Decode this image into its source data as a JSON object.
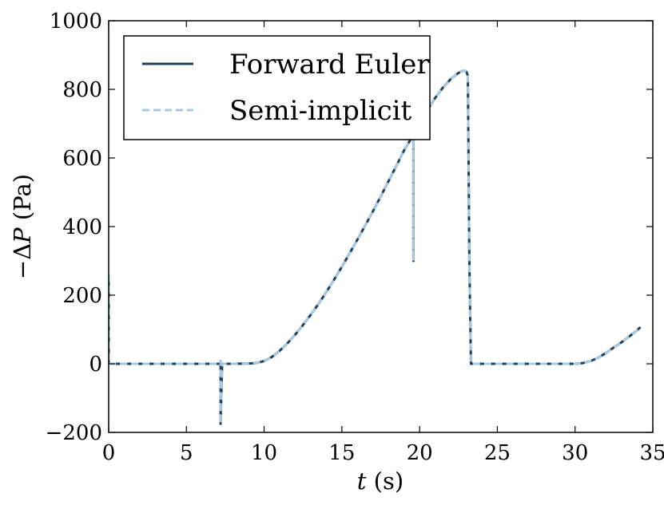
{
  "chart_data": {
    "type": "line",
    "xlabel_var": "t",
    "xlabel_unit": "(s)",
    "ylabel_prefix": "−Δ",
    "ylabel_var": "P",
    "ylabel_unit": "(Pa)",
    "xlim": [
      0,
      35
    ],
    "ylim": [
      -200,
      1000
    ],
    "xticks": [
      0,
      5,
      10,
      15,
      20,
      25,
      30,
      35
    ],
    "xtick_labels": [
      "0",
      "5",
      "10",
      "15",
      "20",
      "25",
      "30",
      "35"
    ],
    "yticks": [
      -200,
      0,
      200,
      400,
      600,
      800,
      1000
    ],
    "ytick_labels": [
      "−200",
      "0",
      "200",
      "400",
      "600",
      "800",
      "1000"
    ],
    "grid": false,
    "legend_position": "top-left",
    "series": [
      {
        "name": "Forward Euler",
        "color": "#1f3f5b",
        "style": "solid",
        "x": [
          0,
          0,
          0.02,
          0.1,
          2,
          4,
          6,
          7.2,
          7.2,
          7.2,
          7.3,
          8,
          9,
          9.5,
          10,
          10.5,
          11,
          11.5,
          12,
          12.5,
          13,
          13.5,
          14,
          14.5,
          15,
          15.5,
          16,
          16.5,
          17,
          17.5,
          18,
          18.5,
          19,
          19.5,
          19.6,
          19.6,
          19.6,
          19.7,
          20,
          20.5,
          21,
          21.5,
          22,
          22.5,
          22.8,
          23.0,
          23.1,
          23.15,
          23.2,
          23.3,
          23.5,
          25,
          27,
          29,
          30,
          30.5,
          31,
          31.5,
          32,
          32.5,
          33,
          33.5,
          34,
          34.2
        ],
        "y": [
          260,
          0,
          0,
          0,
          0,
          0,
          0,
          0,
          8,
          -175,
          0,
          0,
          1,
          2,
          8,
          20,
          38,
          60,
          85,
          113,
          143,
          175,
          209,
          245,
          283,
          322,
          362,
          403,
          445,
          488,
          532,
          577,
          622,
          660,
          665,
          300,
          665,
          680,
          700,
          740,
          775,
          805,
          830,
          848,
          855,
          853,
          840,
          600,
          300,
          0,
          0,
          0,
          0,
          0,
          0,
          2,
          8,
          18,
          32,
          48,
          63,
          80,
          98,
          107
        ]
      },
      {
        "name": "Semi-implicit",
        "color": "#a6c8e0",
        "style": "dashed",
        "x": [
          0,
          0,
          0.02,
          0.1,
          2,
          4,
          6,
          7.2,
          7.2,
          7.2,
          7.3,
          8,
          9,
          9.5,
          10,
          10.5,
          11,
          11.5,
          12,
          12.5,
          13,
          13.5,
          14,
          14.5,
          15,
          15.5,
          16,
          16.5,
          17,
          17.5,
          18,
          18.5,
          19,
          19.5,
          19.6,
          19.6,
          19.6,
          19.7,
          20,
          20.5,
          21,
          21.5,
          22,
          22.5,
          22.8,
          23.0,
          23.1,
          23.15,
          23.2,
          23.3,
          23.5,
          25,
          27,
          29,
          30,
          30.5,
          31,
          31.5,
          32,
          32.5,
          33,
          33.5,
          34,
          34.2
        ],
        "y": [
          260,
          0,
          0,
          0,
          0,
          0,
          0,
          0,
          8,
          -175,
          0,
          0,
          1,
          2,
          8,
          20,
          38,
          60,
          85,
          113,
          143,
          175,
          209,
          245,
          283,
          322,
          362,
          403,
          445,
          488,
          532,
          577,
          622,
          660,
          665,
          300,
          665,
          680,
          700,
          740,
          775,
          805,
          830,
          848,
          855,
          853,
          840,
          600,
          300,
          0,
          0,
          0,
          0,
          0,
          0,
          2,
          8,
          18,
          32,
          48,
          63,
          80,
          98,
          107
        ]
      }
    ]
  }
}
